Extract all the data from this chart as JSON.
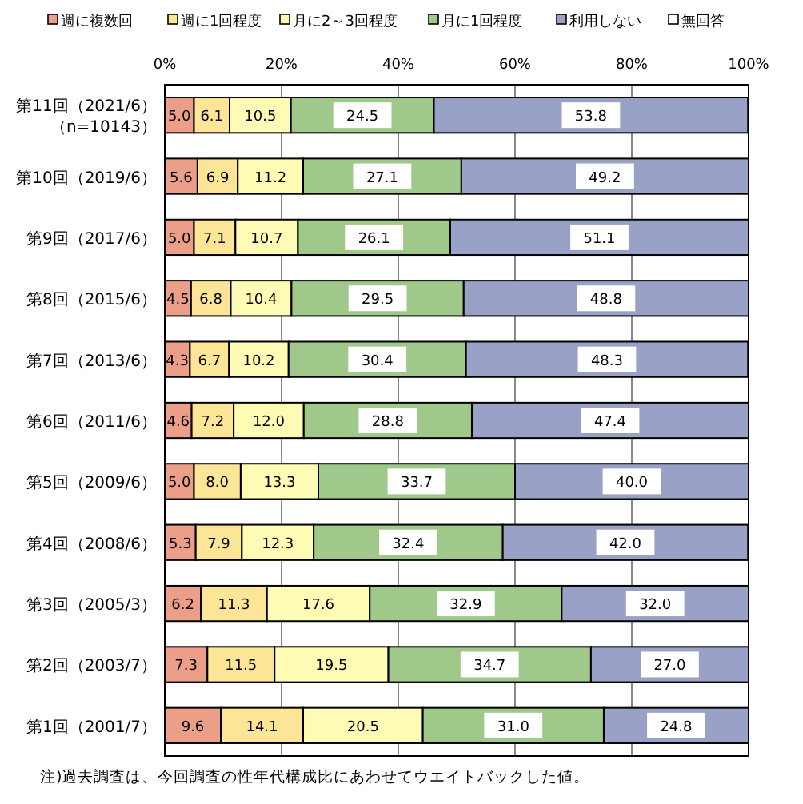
{
  "chart_data": {
    "type": "bar",
    "orientation": "horizontal",
    "stacked": true,
    "categories": [
      "第11回（2021/6）（n=10143）",
      "第10回（2019/6）",
      "第9回（2017/6）",
      "第8回（2015/6）",
      "第7回（2013/6）",
      "第6回（2011/6）",
      "第5回（2009/6）",
      "第4回（2008/6）",
      "第3回（2005/3）",
      "第2回（2003/7）",
      "第1回（2001/7）"
    ],
    "series": [
      {
        "name": "週に複数回",
        "color": "#ec9f88",
        "values": [
          5.0,
          5.6,
          5.0,
          4.5,
          4.3,
          4.6,
          5.0,
          5.3,
          6.2,
          7.3,
          9.6
        ],
        "value_labels": [
          "5.0",
          "5.6",
          "5.0",
          "4.5",
          "4.3",
          "4.6",
          "5.0",
          "5.3",
          "6.2",
          "7.3",
          "9.6"
        ]
      },
      {
        "name": "週に1回程度",
        "color": "#fde597",
        "values": [
          6.1,
          6.9,
          7.1,
          6.8,
          6.7,
          7.2,
          8.0,
          7.9,
          11.3,
          11.5,
          14.1
        ],
        "value_labels": [
          "6.1",
          "6.9",
          "7.1",
          "6.8",
          "6.7",
          "7.2",
          "8.0",
          "7.9",
          "11.3",
          "11.5",
          "14.1"
        ]
      },
      {
        "name": "月に2～3回程度",
        "color": "#fefbb5",
        "values": [
          10.5,
          11.2,
          10.7,
          10.4,
          10.2,
          12.0,
          13.3,
          12.3,
          17.6,
          19.5,
          20.5
        ],
        "value_labels": [
          "10.5",
          "11.2",
          "10.7",
          "10.4",
          "10.2",
          "12.0",
          "13.3",
          "12.3",
          "17.6",
          "19.5",
          "20.5"
        ]
      },
      {
        "name": "月に1回程度",
        "color": "#9fc88a",
        "values": [
          24.5,
          27.1,
          26.1,
          29.5,
          30.4,
          28.8,
          33.7,
          32.4,
          32.9,
          34.7,
          31.0
        ],
        "value_labels": [
          "24.5",
          "27.1",
          "26.1",
          "29.5",
          "30.4",
          "28.8",
          "33.7",
          "32.4",
          "32.9",
          "34.7",
          "31.0"
        ]
      },
      {
        "name": "利用しない",
        "color": "#99a1c6",
        "values": [
          53.8,
          49.2,
          51.1,
          48.8,
          48.3,
          47.4,
          40.0,
          42.0,
          32.0,
          27.0,
          24.8
        ],
        "value_labels": [
          "53.8",
          "49.2",
          "51.1",
          "48.8",
          "48.3",
          "47.4",
          "40.0",
          "42.0",
          "32.0",
          "27.0",
          "24.8"
        ]
      },
      {
        "name": "無回答",
        "color": "#ffffff",
        "values": [
          null,
          null,
          null,
          null,
          null,
          null,
          null,
          null,
          null,
          null,
          null
        ]
      }
    ],
    "xlim": [
      0,
      100
    ],
    "xticks": [
      {
        "value": 0,
        "label": "0%"
      },
      {
        "value": 20,
        "label": "20%"
      },
      {
        "value": 40,
        "label": "40%"
      },
      {
        "value": 60,
        "label": "60%"
      },
      {
        "value": 80,
        "label": "80%"
      },
      {
        "value": 100,
        "label": "100%"
      }
    ],
    "grid": "x",
    "legend": "top",
    "annotations": [
      "注)過去調査は、今回調査の性年代構成比にあわせてウエイトバックした値。"
    ]
  }
}
